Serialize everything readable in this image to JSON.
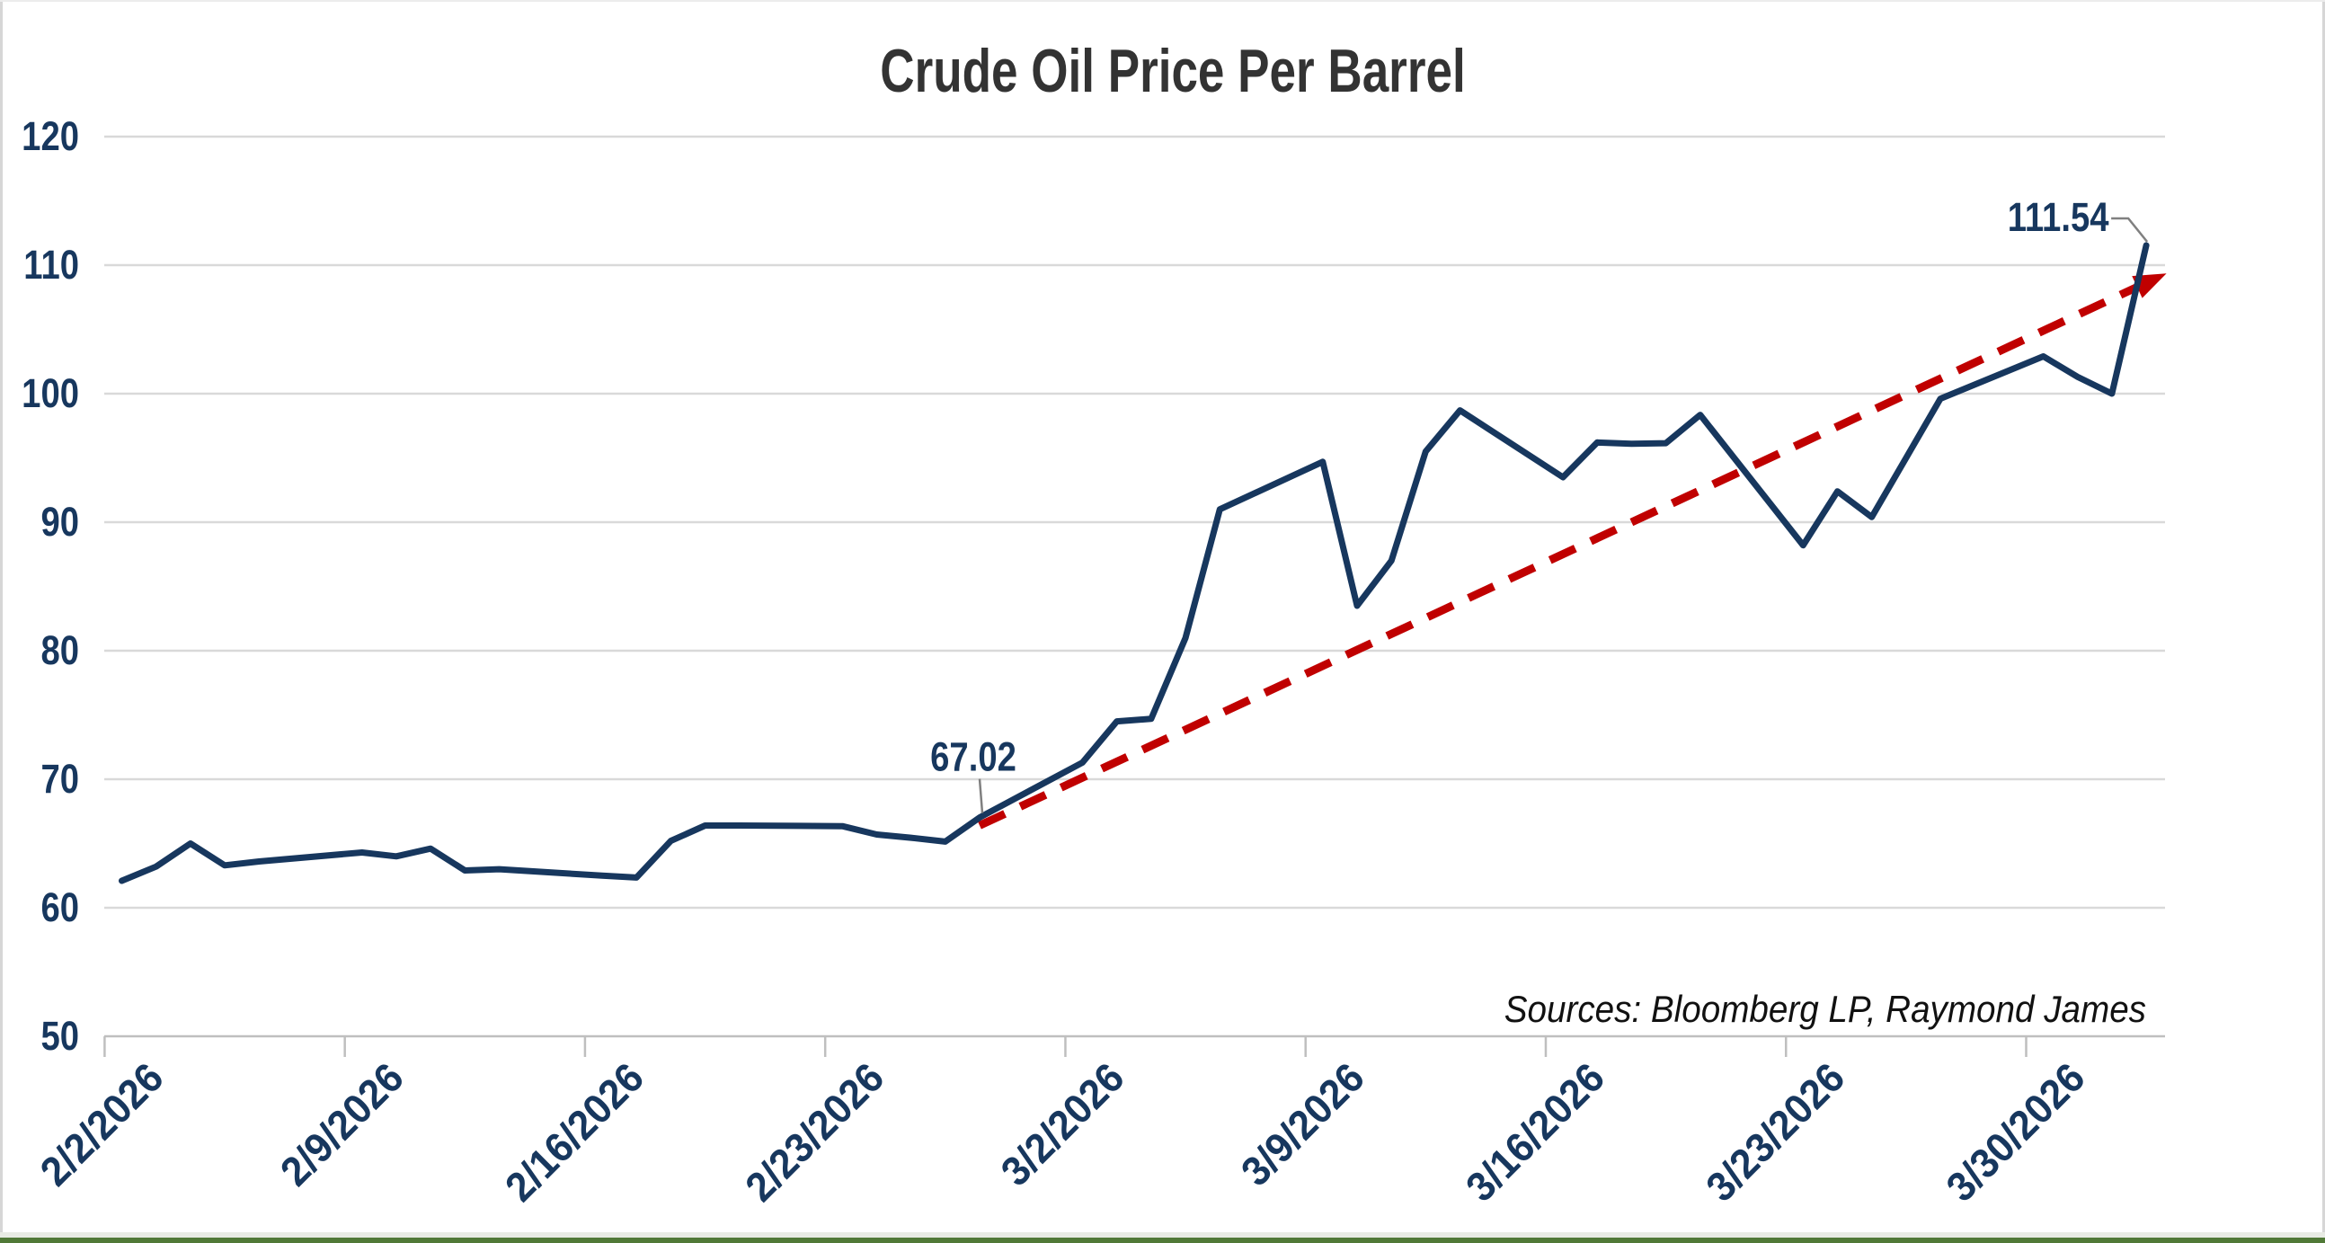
{
  "chart": {
    "title": "Crude Oil Price Per Barrel",
    "source_note": "Sources: Bloomberg LP, Raymond James",
    "colors": {
      "series_line": "#17375e",
      "trendline": "#c00000",
      "axis_labels": "#17375e",
      "title_text": "#333333",
      "gridline": "#d9d9d9",
      "axis_line": "#bfbfbf",
      "leader_line": "#808080",
      "source_text": "#111111",
      "bottom_accent_green": "#507937",
      "bottom_accent_light": "#e8ebe4",
      "frame_border": "#d6d6d6"
    }
  },
  "chart_data": {
    "type": "line",
    "title": "Crude Oil Price Per Barrel",
    "source_note": "Sources: Bloomberg LP, Raymond James",
    "xlabel": "",
    "ylabel": "",
    "ylim": [
      50,
      120
    ],
    "y_ticks": [
      50,
      60,
      70,
      80,
      90,
      100,
      110,
      120
    ],
    "grid": true,
    "legend": "none",
    "x_tick_labels": [
      "2/2/2026",
      "2/9/2026",
      "2/16/2026",
      "2/23/2026",
      "3/2/2026",
      "3/9/2026",
      "3/16/2026",
      "3/23/2026",
      "3/30/2026"
    ],
    "dates": [
      "2/2/2026",
      "2/3/2026",
      "2/4/2026",
      "2/5/2026",
      "2/6/2026",
      "2/9/2026",
      "2/10/2026",
      "2/11/2026",
      "2/12/2026",
      "2/13/2026",
      "2/16/2026",
      "2/17/2026",
      "2/18/2026",
      "2/19/2026",
      "2/20/2026",
      "2/23/2026",
      "2/24/2026",
      "2/25/2026",
      "2/26/2026",
      "2/27/2026",
      "3/2/2026",
      "3/3/2026",
      "3/4/2026",
      "3/5/2026",
      "3/6/2026",
      "3/9/2026",
      "3/10/2026",
      "3/11/2026",
      "3/12/2026",
      "3/13/2026",
      "3/16/2026",
      "3/17/2026",
      "3/18/2026",
      "3/19/2026",
      "3/20/2026",
      "3/23/2026",
      "3/24/2026",
      "3/25/2026",
      "3/26/2026",
      "3/27/2026",
      "3/30/2026",
      "3/31/2026",
      "4/1/2026",
      "4/2/2026"
    ],
    "day_offsets": [
      0,
      1,
      2,
      3,
      4,
      7,
      8,
      9,
      10,
      11,
      14,
      15,
      16,
      17,
      18,
      21,
      22,
      23,
      24,
      25,
      28,
      29,
      30,
      31,
      32,
      35,
      36,
      37,
      38,
      39,
      42,
      43,
      44,
      45,
      46,
      49,
      50,
      51,
      52,
      53,
      56,
      57,
      58,
      59
    ],
    "values": [
      62.1,
      63.2,
      65.0,
      63.3,
      63.6,
      64.3,
      64.0,
      64.6,
      62.9,
      63.0,
      62.5,
      62.35,
      65.2,
      66.4,
      66.4,
      66.35,
      65.7,
      65.45,
      65.15,
      67.02,
      71.3,
      74.5,
      74.7,
      81.0,
      91.0,
      94.7,
      83.5,
      87.0,
      95.5,
      98.7,
      93.5,
      96.2,
      96.1,
      96.15,
      98.35,
      88.2,
      92.4,
      90.4,
      95.0,
      99.6,
      102.9,
      101.3,
      100.0,
      111.54
    ],
    "trendline": {
      "type": "linear",
      "style": "dashed",
      "arrow": true,
      "color": "#c00000",
      "from": {
        "day_offset": 25,
        "value": 66.4
      },
      "to": {
        "day_offset": 58.9,
        "value": 108.5
      }
    },
    "annotations": [
      {
        "label": "67.02",
        "date": "2/27/2026",
        "day_offset": 25,
        "value": 67.02
      },
      {
        "label": "111.54",
        "date": "4/2/2026",
        "day_offset": 59,
        "value": 111.54
      }
    ]
  }
}
